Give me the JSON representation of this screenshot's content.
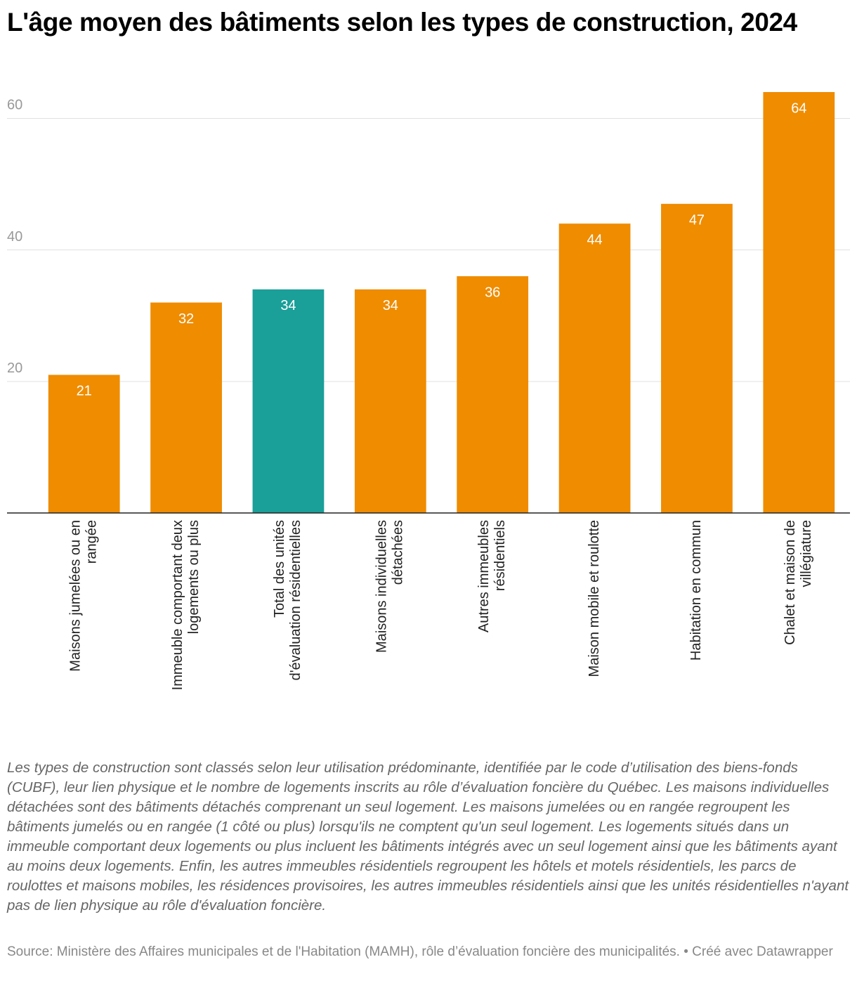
{
  "chart_data": {
    "type": "bar",
    "title": "L'âge moyen des bâtiments selon les types de construction, 2024",
    "categories": [
      [
        "Maisons jumelées ou en",
        "rangée"
      ],
      [
        "Immeuble comportant deux",
        "logements ou plus"
      ],
      [
        "Total des unités",
        "d'évaluation résidentielles"
      ],
      [
        "Maisons individuelles",
        "détachées"
      ],
      [
        "Autres immeubles",
        "résidentiels"
      ],
      [
        "Maison mobile et roulotte"
      ],
      [
        "Habitation en commun"
      ],
      [
        "Chalet et maison de",
        "villégiature"
      ]
    ],
    "values": [
      21,
      32,
      34,
      34,
      36,
      44,
      47,
      64
    ],
    "colors": [
      "#ef8c00",
      "#ef8c00",
      "#1a9f99",
      "#ef8c00",
      "#ef8c00",
      "#ef8c00",
      "#ef8c00",
      "#ef8c00"
    ],
    "ylim": [
      0,
      64
    ],
    "yticks": [
      20,
      40,
      60
    ],
    "grid": true,
    "notes": "Les types de construction sont classés selon leur utilisation prédominante, identifiée par le code d’utilisation des biens-fonds (CUBF), leur lien physique et le nombre de logements inscrits au rôle d’évaluation foncière du Québec. Les maisons individuelles détachées sont des bâtiments détachés comprenant un seul logement. Les maisons jumelées ou en rangée regroupent les bâtiments jumelés ou en rangée (1 côté ou plus) lorsqu'ils ne comptent qu'un seul logement. Les logements situés dans un immeuble comportant deux logements ou plus incluent les bâtiments intégrés avec un seul logement ainsi que les bâtiments ayant au moins deux logements. Enfin, les autres immeubles résidentiels regroupent les hôtels et motels résidentiels, les parcs de roulottes et maisons mobiles, les résidences provisoires, les autres immeubles résidentiels ainsi que les unités résidentielles n'ayant pas de lien physique au rôle d'évaluation foncière.",
    "source": "Source: Ministère des Affaires municipales et de l'Habitation (MAMH), rôle d’évaluation foncière des municipalités. • Créé avec Datawrapper"
  }
}
